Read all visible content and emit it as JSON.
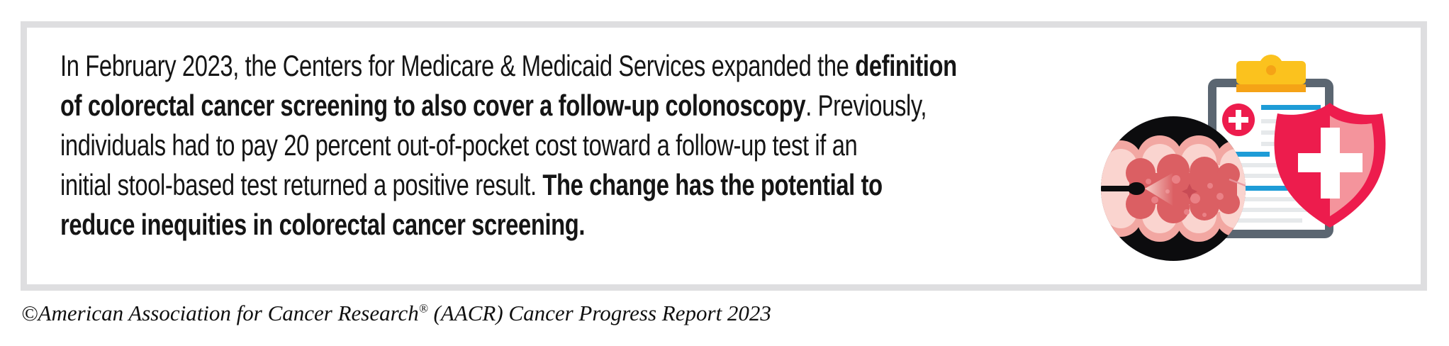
{
  "note": {
    "lines": [
      [
        {
          "text": "In February 2023, the Centers for Medicare & Medicaid Services expanded the ",
          "bold": false
        },
        {
          "text": "definition",
          "bold": true
        }
      ],
      [
        {
          "text": "of colorectal cancer screening to also cover a follow-up colonoscopy",
          "bold": true
        },
        {
          "text": ". Previously,",
          "bold": false
        }
      ],
      [
        {
          "text": "individuals had to pay 20 percent out-of-pocket cost toward a follow-up test if an",
          "bold": false
        }
      ],
      [
        {
          "text": "initial stool-based test returned a positive result. ",
          "bold": false
        },
        {
          "text": "The change has the potential to",
          "bold": true
        }
      ],
      [
        {
          "text": "reduce inequities in colorectal cancer screening.",
          "bold": true
        }
      ]
    ]
  },
  "attribution": {
    "prefix": "©American Association for Cancer Research",
    "reg": "®",
    "suffix": " (AACR) Cancer Progress Report 2023"
  },
  "illustration": {
    "icons": [
      "colonoscopy-icon",
      "colonoscope-icon",
      "clipboard-icon",
      "medical-cross-badge-icon",
      "shield-cross-icon",
      "document-lines"
    ],
    "description": "Colonoscopy view of a colon inside a black circle, medical clipboard with yellow clip and red cross badge, red protection shield with white cross"
  },
  "colors": {
    "border_gray": "#DEDEE0",
    "ink": "#151515",
    "red": "#ED1C4D",
    "shield_pink": "#F4949C",
    "yellow": "#FBC21E",
    "yellow_dark": "#F5A316",
    "slate": "#5B6671",
    "blue": "#1E9CD7",
    "paper_line": "#E6E9EB",
    "circle_black": "#0C0C0E",
    "colon_outer": "#F2A7A2",
    "colon_light": "#FAD4CF",
    "colon_dark": "#DB5F63",
    "colon_spot": "#EA8186",
    "sparkle": "#C84B55",
    "beam_start": "#FAD9D3",
    "crack": "#E8979E",
    "white": "#FFFFFF"
  }
}
